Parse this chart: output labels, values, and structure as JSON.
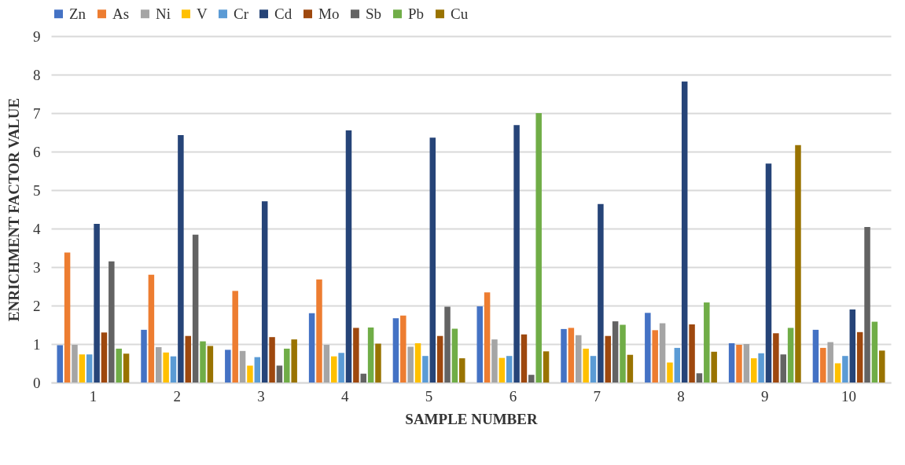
{
  "chart_data": {
    "type": "bar",
    "xlabel": "SAMPLE NUMBER",
    "ylabel": "ENRICHMENT FACTOR VALUE",
    "categories": [
      "1",
      "2",
      "3",
      "4",
      "5",
      "6",
      "7",
      "8",
      "9",
      "10"
    ],
    "ylim": [
      0,
      9
    ],
    "yticks": [
      0,
      1,
      2,
      3,
      4,
      5,
      6,
      7,
      8,
      9
    ],
    "grid": "y",
    "legend": "top",
    "series": [
      {
        "name": "Zn",
        "color": "#4472c4",
        "values": [
          0.97,
          1.37,
          0.85,
          1.8,
          1.67,
          1.98,
          1.39,
          1.81,
          1.02,
          1.37
        ]
      },
      {
        "name": "As",
        "color": "#ed7d31",
        "values": [
          3.38,
          2.8,
          2.38,
          2.68,
          1.74,
          2.34,
          1.42,
          1.36,
          0.98,
          0.9
        ]
      },
      {
        "name": "Ni",
        "color": "#a5a5a5",
        "values": [
          0.98,
          0.92,
          0.82,
          0.98,
          0.93,
          1.12,
          1.23,
          1.54,
          1.0,
          1.05
        ]
      },
      {
        "name": "V",
        "color": "#ffc000",
        "values": [
          0.73,
          0.78,
          0.44,
          0.68,
          1.02,
          0.64,
          0.88,
          0.52,
          0.63,
          0.5
        ]
      },
      {
        "name": "Cr",
        "color": "#5b9bd5",
        "values": [
          0.73,
          0.68,
          0.66,
          0.77,
          0.69,
          0.69,
          0.69,
          0.9,
          0.76,
          0.69
        ]
      },
      {
        "name": "Cd",
        "color": "#264478",
        "values": [
          4.12,
          6.43,
          4.71,
          6.55,
          6.36,
          6.69,
          4.64,
          7.82,
          5.69,
          1.9
        ]
      },
      {
        "name": "Mo",
        "color": "#9e480e",
        "values": [
          1.3,
          1.21,
          1.18,
          1.42,
          1.21,
          1.25,
          1.21,
          1.51,
          1.28,
          1.31
        ]
      },
      {
        "name": "Sb",
        "color": "#636363",
        "values": [
          3.15,
          3.84,
          0.44,
          0.23,
          1.97,
          0.2,
          1.59,
          0.24,
          0.73,
          4.04
        ]
      },
      {
        "name": "Pb",
        "color": "#70ad47",
        "values": [
          0.88,
          1.07,
          0.88,
          1.43,
          1.4,
          7.0,
          1.5,
          2.08,
          1.42,
          1.58
        ]
      },
      {
        "name": "Cu",
        "color": "#997300",
        "values": [
          0.75,
          0.95,
          1.12,
          1.01,
          0.63,
          0.81,
          0.72,
          0.8,
          6.17,
          0.83
        ]
      }
    ]
  }
}
